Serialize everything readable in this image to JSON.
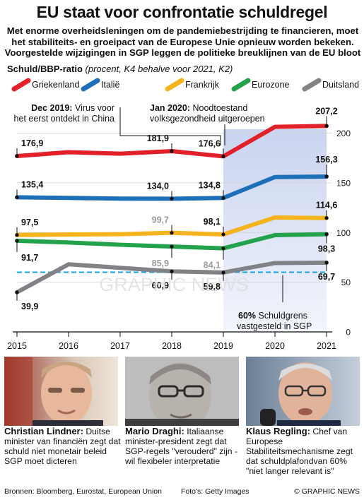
{
  "title": "EU staat voor confrontatie schuldregel",
  "subtitle": "Met enorme overheidsleningen om de pandemiebestrijding te financieren, moet het stabiliteits- en groeipact van de Europese Unie opnieuw worden bekeken. Voorgestelde wijzigingen in SGP leggen de politieke breuklijnen van de EU bloot",
  "chart_head": {
    "label": "Schuld/BBP-ratio",
    "note": "(procent, K4 behalve voor 2021, K2)"
  },
  "chart_data": {
    "type": "line",
    "x": [
      2015,
      2016,
      2017,
      2018,
      2019,
      2020,
      2021
    ],
    "ylim": [
      0,
      210
    ],
    "yticks": [
      0,
      50,
      100,
      150,
      200
    ],
    "series": [
      {
        "name": "Griekenland",
        "color": "#e2202a",
        "values": [
          176.9,
          180.8,
          179.3,
          181.9,
          176.6,
          206.3,
          207.2
        ],
        "labels": {
          "2015": "176,9",
          "2018": "181,9",
          "2019": "176,6",
          "2021": "207,2"
        }
      },
      {
        "name": "Italië",
        "color": "#1d6fb8",
        "values": [
          135.4,
          134.8,
          134.1,
          134.0,
          134.8,
          155.8,
          156.3
        ],
        "labels": {
          "2015": "135,4",
          "2018": "134,0",
          "2019": "134,8",
          "2021": "156,3"
        }
      },
      {
        "name": "Frankrijk",
        "color": "#f5b31d",
        "values": [
          97.5,
          98.0,
          98.3,
          99.7,
          98.1,
          115.1,
          114.6
        ],
        "labels": {
          "2015": "97,5",
          "2018": "99,7",
          "2019": "98,1",
          "2021": "114,6"
        }
      },
      {
        "name": "Eurozone",
        "color": "#22a24b",
        "values": [
          91.7,
          90.0,
          87.7,
          85.9,
          84.1,
          97.3,
          98.3
        ],
        "labels": {
          "2015": "91,7",
          "2018": "85,9",
          "2019": "84,1",
          "2021": "98,3"
        }
      },
      {
        "name": "Duitsland",
        "color": "#808285",
        "values": [
          39.9,
          68.0,
          64.5,
          60.9,
          59.8,
          69.3,
          69.7
        ],
        "labels": {
          "2015": "39,9",
          "2018": "60,9",
          "2019": "59,8",
          "2021": "69,7"
        }
      }
    ],
    "threshold": {
      "value": 60,
      "label_value": "60%",
      "label_text": "Schuldgrens vastgesteld in SGP"
    },
    "annotations": [
      {
        "title": "Dec 2019:",
        "text": "Virus voor het eerst ontdekt in China"
      },
      {
        "title": "Jan 2020:",
        "text": "Noodtoestand volksgezondheid uitgeroepen"
      }
    ],
    "watermark": "GRAPHIC NEWS"
  },
  "people": [
    {
      "name": "Christian Lindner:",
      "text": "Duitse minister van financiën zegt dat schuld niet monetair beleid SGP moet dicteren"
    },
    {
      "name": "Mario Draghi:",
      "text": "Italiaanse minister-president zegt dat SGP-regels \"verouderd\" zijn - wil flexibeler interpretatie"
    },
    {
      "name": "Klaus Regling:",
      "text": "Chef van Europese Stabiliteitsmechanisme zegt dat schuldplafondvan 60% \"niet langer relevant is\""
    }
  ],
  "footer": {
    "sources": "Bronnen: Bloomberg, Eurostat, European Union",
    "photos": "Foto's: Getty Images",
    "copyright": "© GRAPHIC NEWS"
  }
}
